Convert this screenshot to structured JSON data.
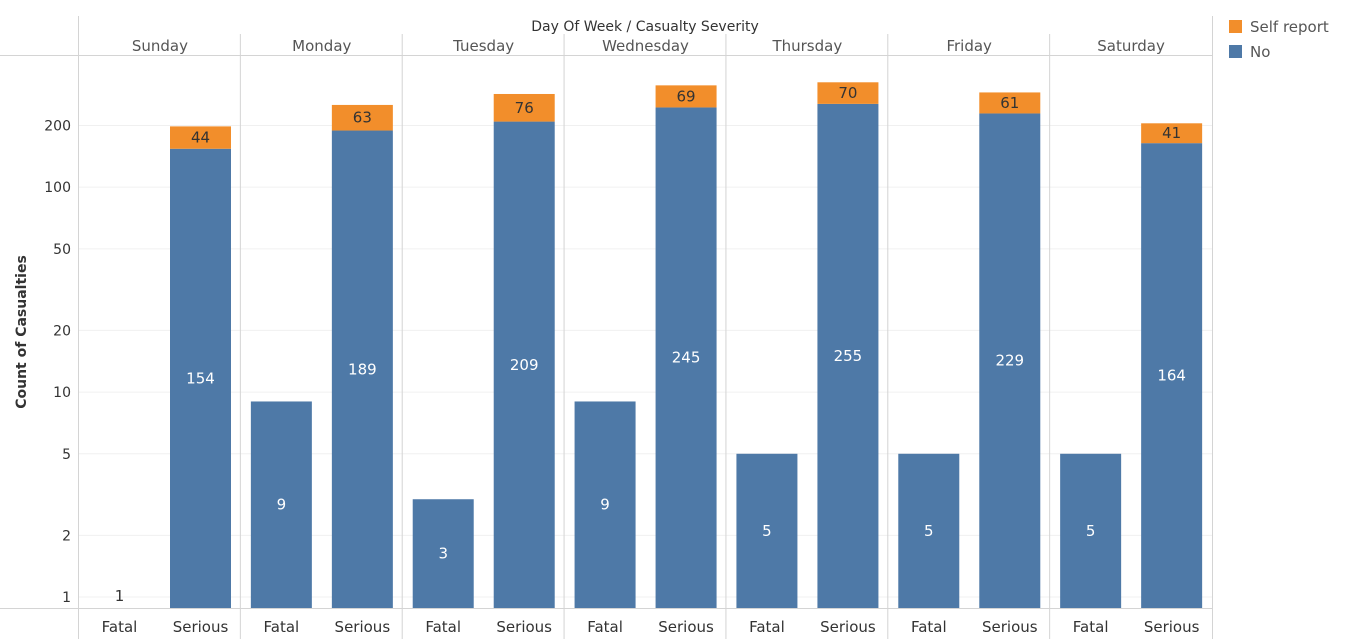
{
  "chart_data": {
    "type": "bar",
    "stacked": true,
    "scale": "log",
    "title": "Day Of Week  /  Casualty Severity",
    "ylabel": "Count of Casualties",
    "ylim": [
      1,
      340
    ],
    "y_ticks": [
      1,
      2,
      5,
      10,
      20,
      50,
      100,
      200
    ],
    "grid": true,
    "legend_position": "top-right",
    "groups": [
      "Sunday",
      "Monday",
      "Tuesday",
      "Wednesday",
      "Thursday",
      "Friday",
      "Saturday"
    ],
    "categories": [
      "Fatal",
      "Serious"
    ],
    "series": [
      {
        "name": "No",
        "color": "#4e79a7",
        "values": [
          [
            1,
            154
          ],
          [
            9,
            189
          ],
          [
            3,
            209
          ],
          [
            9,
            245
          ],
          [
            5,
            255
          ],
          [
            5,
            229
          ],
          [
            5,
            164
          ]
        ]
      },
      {
        "name": "Self report",
        "color": "#f28e2b",
        "values": [
          [
            0,
            44
          ],
          [
            0,
            63
          ],
          [
            0,
            76
          ],
          [
            0,
            69
          ],
          [
            0,
            70
          ],
          [
            0,
            61
          ],
          [
            0,
            41
          ]
        ]
      }
    ],
    "legend_order": [
      "Self report",
      "No"
    ]
  }
}
